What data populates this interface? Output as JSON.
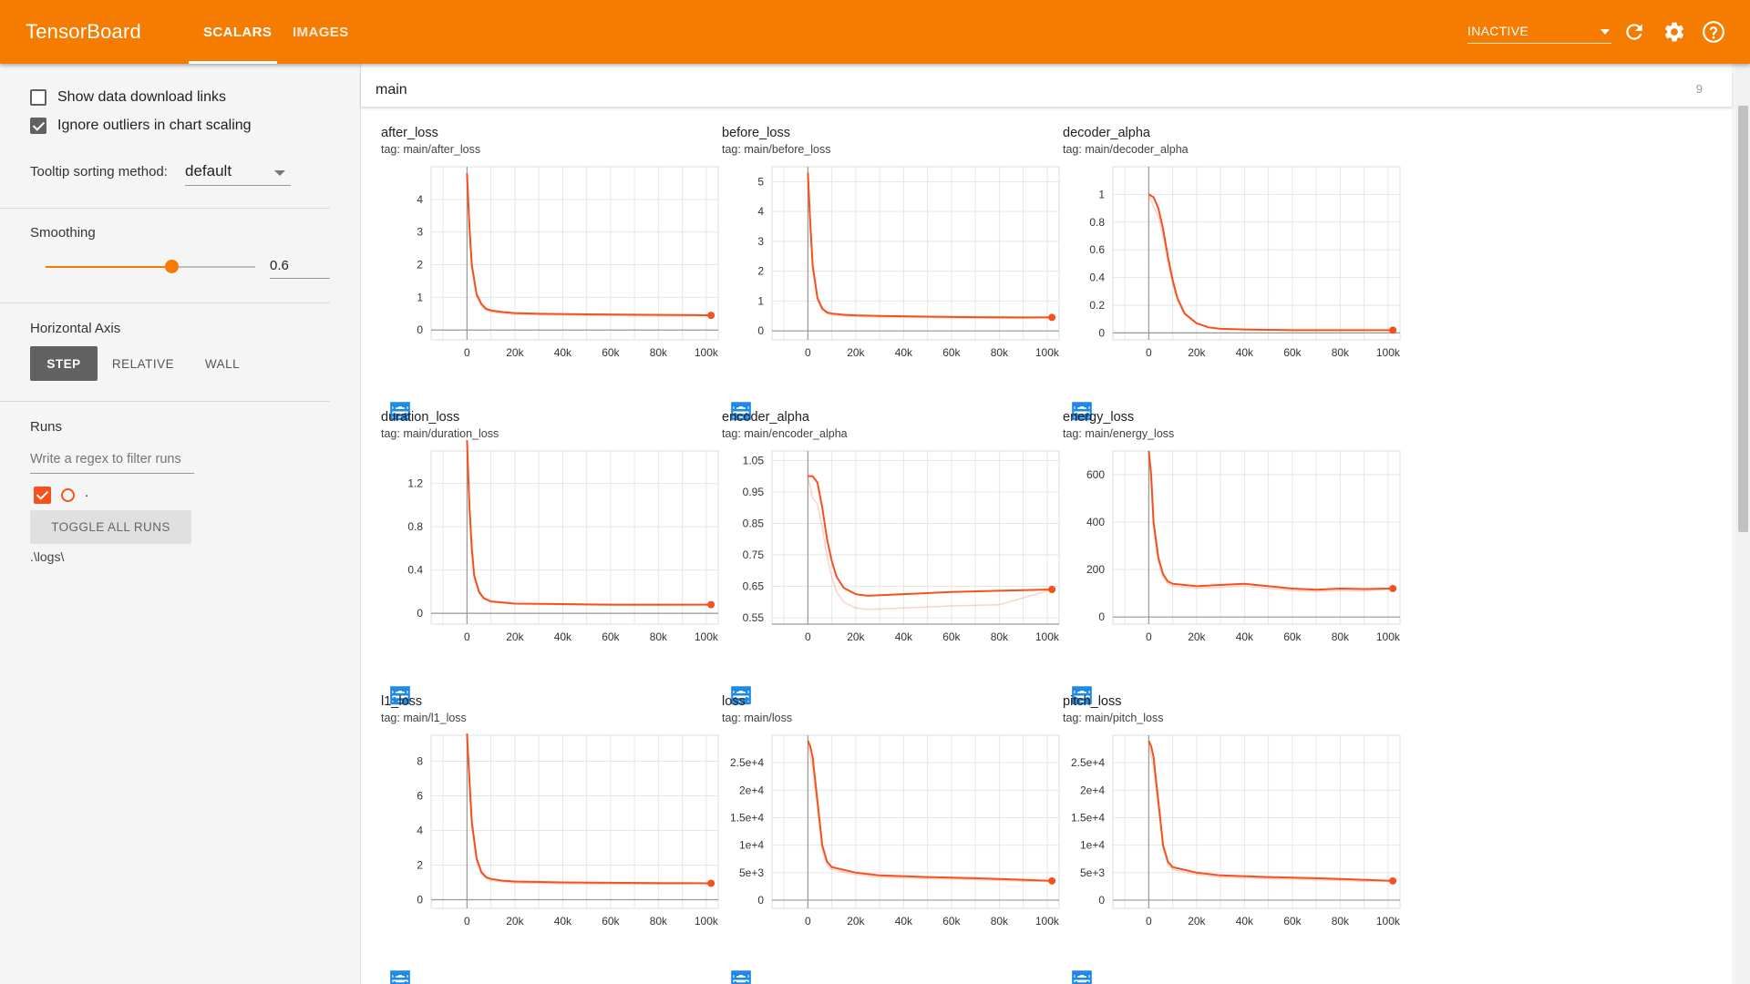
{
  "app": {
    "title": "TensorBoard",
    "tabs": [
      {
        "label": "SCALARS"
      },
      {
        "label": "IMAGES"
      }
    ],
    "status": "INACTIVE",
    "icons": [
      "refresh-icon",
      "settings-icon",
      "help-icon"
    ]
  },
  "sidebar": {
    "show_download": {
      "label": "Show data download links",
      "checked": false
    },
    "ignore_outliers": {
      "label": "Ignore outliers in chart scaling",
      "checked": true
    },
    "tooltip_label": "Tooltip sorting method:",
    "tooltip_value": "default",
    "smoothing_label": "Smoothing",
    "smoothing_value": "0.6",
    "smoothing_fraction": 0.6,
    "haxis_label": "Horizontal Axis",
    "haxis_options": [
      "STEP",
      "RELATIVE",
      "WALL"
    ],
    "runs_label": "Runs",
    "runs_filter_placeholder": "Write a regex to filter runs",
    "run_name": ".",
    "toggle_label": "TOGGLE ALL RUNS",
    "logdir": ".\\logs\\"
  },
  "main": {
    "group_name": "main",
    "group_count": "9"
  },
  "accent_color": "#f57c00",
  "series_color": "#f4511e",
  "chart_data": [
    {
      "type": "line",
      "title": "after_loss",
      "tag": "tag: main/after_loss",
      "yticks": [
        "0",
        "1",
        "2",
        "3",
        "4"
      ],
      "ytick_values": [
        0,
        1,
        2,
        3,
        4
      ],
      "ylim": [
        -0.3,
        5.0
      ],
      "xticks": [
        "0",
        "20k",
        "40k",
        "60k",
        "80k",
        "100k"
      ],
      "x": [
        0,
        1000,
        2000,
        4000,
        6000,
        8000,
        10000,
        15000,
        20000,
        30000,
        50000,
        70000,
        90000,
        102000
      ],
      "y": [
        4.8,
        3.2,
        2.0,
        1.1,
        0.8,
        0.65,
        0.6,
        0.55,
        0.52,
        0.5,
        0.48,
        0.47,
        0.46,
        0.45
      ]
    },
    {
      "type": "line",
      "title": "before_loss",
      "tag": "tag: main/before_loss",
      "yticks": [
        "0",
        "1",
        "2",
        "3",
        "4",
        "5"
      ],
      "ytick_values": [
        0,
        1,
        2,
        3,
        4,
        5
      ],
      "ylim": [
        -0.3,
        5.5
      ],
      "xticks": [
        "0",
        "20k",
        "40k",
        "60k",
        "80k",
        "100k"
      ],
      "x": [
        0,
        1000,
        2000,
        4000,
        6000,
        8000,
        10000,
        15000,
        20000,
        30000,
        50000,
        70000,
        90000,
        102000
      ],
      "y": [
        5.3,
        3.6,
        2.2,
        1.1,
        0.75,
        0.62,
        0.58,
        0.54,
        0.52,
        0.5,
        0.48,
        0.46,
        0.45,
        0.45
      ]
    },
    {
      "type": "line",
      "title": "decoder_alpha",
      "tag": "tag: main/decoder_alpha",
      "yticks": [
        "0",
        "0.2",
        "0.4",
        "0.6",
        "0.8",
        "1"
      ],
      "ytick_values": [
        0,
        0.2,
        0.4,
        0.6,
        0.8,
        1
      ],
      "ylim": [
        -0.05,
        1.2
      ],
      "xticks": [
        "0",
        "20k",
        "40k",
        "60k",
        "80k",
        "100k"
      ],
      "x": [
        0,
        2000,
        4000,
        6000,
        8000,
        10000,
        12000,
        15000,
        20000,
        25000,
        30000,
        40000,
        60000,
        80000,
        102000
      ],
      "y": [
        1.0,
        0.98,
        0.9,
        0.75,
        0.55,
        0.38,
        0.25,
        0.14,
        0.07,
        0.04,
        0.03,
        0.025,
        0.02,
        0.02,
        0.02
      ]
    },
    {
      "type": "line",
      "title": "duration_loss",
      "tag": "tag: main/duration_loss",
      "yticks": [
        "0",
        "0.4",
        "0.8",
        "1.2"
      ],
      "ytick_values": [
        0,
        0.4,
        0.8,
        1.2
      ],
      "ylim": [
        -0.1,
        1.5
      ],
      "xticks": [
        "0",
        "20k",
        "40k",
        "60k",
        "80k",
        "100k"
      ],
      "x": [
        0,
        1000,
        2000,
        3000,
        5000,
        7000,
        10000,
        15000,
        20000,
        40000,
        60000,
        80000,
        102000
      ],
      "y": [
        1.6,
        1.0,
        0.6,
        0.35,
        0.2,
        0.14,
        0.11,
        0.1,
        0.09,
        0.085,
        0.08,
        0.08,
        0.08
      ]
    },
    {
      "type": "line",
      "title": "encoder_alpha",
      "tag": "tag: main/encoder_alpha",
      "yticks": [
        "0.55",
        "0.65",
        "0.75",
        "0.85",
        "0.95",
        "1.05"
      ],
      "ytick_values": [
        0.55,
        0.65,
        0.75,
        0.85,
        0.95,
        1.05
      ],
      "ylim": [
        0.53,
        1.08
      ],
      "xticks": [
        "0",
        "20k",
        "40k",
        "60k",
        "80k",
        "100k"
      ],
      "x": [
        0,
        2000,
        4000,
        6000,
        8000,
        10000,
        12000,
        15000,
        20000,
        25000,
        40000,
        60000,
        80000,
        102000
      ],
      "y": [
        1.0,
        1.0,
        0.98,
        0.9,
        0.8,
        0.73,
        0.68,
        0.645,
        0.625,
        0.62,
        0.625,
        0.632,
        0.636,
        0.64
      ]
    },
    {
      "type": "line",
      "title": "energy_loss",
      "tag": "tag: main/energy_loss",
      "yticks": [
        "0",
        "200",
        "400",
        "600"
      ],
      "ytick_values": [
        0,
        200,
        400,
        600
      ],
      "ylim": [
        -30,
        700
      ],
      "xticks": [
        "0",
        "20k",
        "40k",
        "60k",
        "80k",
        "100k"
      ],
      "x": [
        0,
        1000,
        2000,
        4000,
        6000,
        8000,
        10000,
        15000,
        20000,
        30000,
        40000,
        50000,
        60000,
        70000,
        80000,
        90000,
        102000
      ],
      "y": [
        700,
        600,
        400,
        250,
        180,
        150,
        140,
        135,
        130,
        135,
        140,
        130,
        120,
        115,
        120,
        118,
        120
      ]
    },
    {
      "type": "line",
      "title": "l1_loss",
      "tag": "tag: main/l1_loss",
      "yticks": [
        "0",
        "2",
        "4",
        "6",
        "8"
      ],
      "ytick_values": [
        0,
        2,
        4,
        6,
        8
      ],
      "ylim": [
        -0.5,
        9.5
      ],
      "xticks": [
        "0",
        "20k",
        "40k",
        "60k",
        "80k",
        "100k"
      ],
      "x": [
        0,
        1000,
        2000,
        4000,
        6000,
        8000,
        10000,
        15000,
        20000,
        40000,
        60000,
        80000,
        102000
      ],
      "y": [
        9.6,
        7.0,
        4.5,
        2.4,
        1.6,
        1.3,
        1.2,
        1.1,
        1.05,
        1.0,
        0.98,
        0.96,
        0.95
      ]
    },
    {
      "type": "line",
      "title": "loss",
      "tag": "tag: main/loss",
      "yticks": [
        "0",
        "5e+3",
        "1e+4",
        "1.5e+4",
        "2e+4",
        "2.5e+4"
      ],
      "ytick_values": [
        0,
        5000,
        10000,
        15000,
        20000,
        25000
      ],
      "ylim": [
        -1500,
        30000
      ],
      "xticks": [
        "0",
        "20k",
        "40k",
        "60k",
        "80k",
        "100k"
      ],
      "x": [
        0,
        1000,
        2000,
        4000,
        6000,
        8000,
        10000,
        15000,
        20000,
        30000,
        50000,
        70000,
        90000,
        102000
      ],
      "y": [
        29000,
        28000,
        26000,
        18000,
        10000,
        7000,
        6000,
        5500,
        5000,
        4500,
        4200,
        4000,
        3700,
        3500
      ]
    },
    {
      "type": "line",
      "title": "pitch_loss",
      "tag": "tag: main/pitch_loss",
      "yticks": [
        "0",
        "5e+3",
        "1e+4",
        "1.5e+4",
        "2e+4",
        "2.5e+4"
      ],
      "ytick_values": [
        0,
        5000,
        10000,
        15000,
        20000,
        25000
      ],
      "ylim": [
        -1500,
        30000
      ],
      "xticks": [
        "0",
        "20k",
        "40k",
        "60k",
        "80k",
        "100k"
      ],
      "x": [
        0,
        1000,
        2000,
        4000,
        6000,
        8000,
        10000,
        15000,
        20000,
        30000,
        50000,
        70000,
        90000,
        102000
      ],
      "y": [
        29000,
        28000,
        26000,
        18000,
        10000,
        7000,
        6000,
        5500,
        5000,
        4500,
        4200,
        4000,
        3700,
        3500
      ]
    }
  ]
}
